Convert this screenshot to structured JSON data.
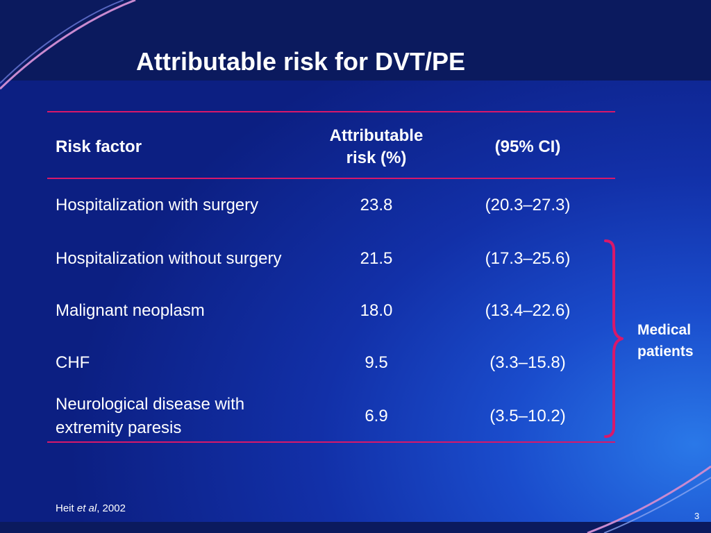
{
  "title": "Attributable risk for DVT/PE",
  "table": {
    "headers": {
      "risk_factor": "Risk factor",
      "attributable_risk": "Attributable risk (%)",
      "ci": "(95% CI)"
    },
    "rows": [
      {
        "factor": "Hospitalization with surgery",
        "risk": "23.8",
        "ci": "(20.3–27.3)"
      },
      {
        "factor": "Hospitalization without surgery",
        "risk": "21.5",
        "ci": "(17.3–25.6)"
      },
      {
        "factor": "Malignant neoplasm",
        "risk": "18.0",
        "ci": "(13.4–22.6)"
      },
      {
        "factor": "CHF",
        "risk": "9.5",
        "ci": "(3.3–15.8)"
      },
      {
        "factor": "Neurological disease with extremity paresis",
        "risk": "6.9",
        "ci": "(3.5–10.2)"
      }
    ]
  },
  "annotation": {
    "label": "Medical patients"
  },
  "source": {
    "author": "Heit",
    "etal": "et al",
    "year": ", 2002"
  },
  "page_number": "3",
  "colors": {
    "accent_line": "#d8186a",
    "background_dark": "#0b1a5e",
    "background_light": "#2a78e8"
  }
}
